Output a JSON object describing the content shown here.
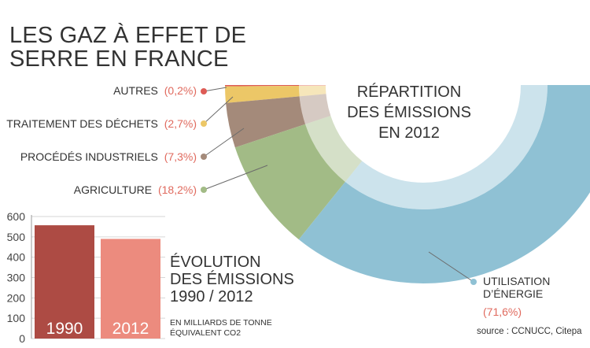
{
  "title_lines": [
    "LES GAZ À EFFET DE",
    "SERRE EN FRANCE"
  ],
  "source": "source : CCNUCC, Citepa",
  "colors": {
    "energie": "#8fc1d4",
    "agriculture": "#a2bb86",
    "procedes": "#a48a7a",
    "dechets": "#ecc767",
    "autres": "#dd5b55",
    "bar_1990": "#ad4b44",
    "bar_2012": "#ec8b7e",
    "pct_text": "#e06a5e"
  },
  "chart_data": [
    {
      "type": "pie",
      "title_lines": [
        "RÉPARTITION",
        "DES ÉMISSIONS",
        "EN 2012"
      ],
      "slices": [
        {
          "key": "energie",
          "label_lines": [
            "UTILISATION",
            "D’ÉNERGIE"
          ],
          "pct_text": "(71,6%)",
          "value": 71.6
        },
        {
          "key": "agriculture",
          "label": "AGRICULTURE",
          "pct_text": "(18,2%)",
          "value": 18.2
        },
        {
          "key": "procedes",
          "label": "PROCÉDÉS INDUSTRIELS",
          "pct_text": "(7,3%)",
          "value": 7.3
        },
        {
          "key": "dechets",
          "label": "TRAITEMENT DES DÉCHETS",
          "pct_text": "(2,7%)",
          "value": 2.7
        },
        {
          "key": "autres",
          "label": "AUTRES",
          "pct_text": "(0,2%)",
          "value": 0.2
        }
      ]
    },
    {
      "type": "bar",
      "title_lines": [
        "ÉVOLUTION",
        "DES ÉMISSIONS",
        "1990 / 2012"
      ],
      "unit_lines": [
        "EN MILLIARDS DE TONNE",
        "ÉQUIVALENT CO2"
      ],
      "categories": [
        "1990",
        "2012"
      ],
      "values": [
        557,
        490
      ],
      "ylim": [
        0,
        600
      ],
      "yticks": [
        "0",
        "100",
        "200",
        "300",
        "400",
        "500",
        "600"
      ]
    }
  ]
}
